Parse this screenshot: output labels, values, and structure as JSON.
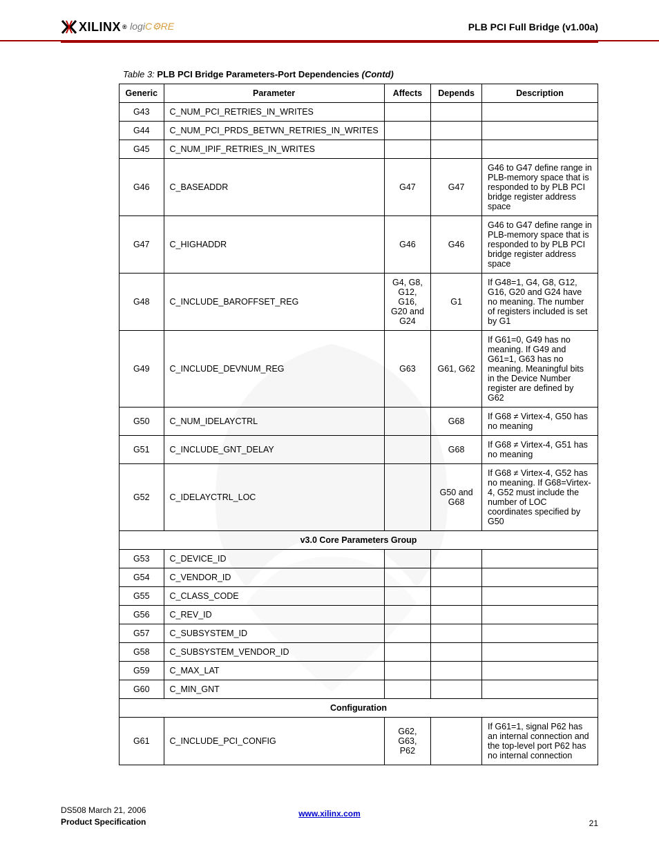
{
  "header": {
    "logo_text": "XILINX",
    "logo_sup": "®",
    "logo_sub_logi": "logi",
    "logo_sub_core": "C⚙RE",
    "title": "PLB PCI Full Bridge (v1.00a)"
  },
  "caption": {
    "prefix": "Table  3:",
    "title": "PLB PCI Bridge Parameters-Port Dependencies",
    "contd": "(Contd)"
  },
  "columns": [
    "Generic",
    "Parameter",
    "Affects",
    "Depends",
    "Description"
  ],
  "rows": [
    {
      "type": "row",
      "generic": "G43",
      "param": "C_NUM_PCI_RETRIES_IN_WRITES",
      "affects": "",
      "depends": "",
      "desc": ""
    },
    {
      "type": "row",
      "generic": "G44",
      "param": "C_NUM_PCI_PRDS_BETWN_RETRIES_IN_WRITES",
      "affects": "",
      "depends": "",
      "desc": ""
    },
    {
      "type": "row",
      "generic": "G45",
      "param": "C_NUM_IPIF_RETRIES_IN_WRITES",
      "affects": "",
      "depends": "",
      "desc": ""
    },
    {
      "type": "row",
      "generic": "G46",
      "param": "C_BASEADDR",
      "affects": "G47",
      "depends": "G47",
      "desc": "G46 to G47 define range in PLB-memory space that is responded to by PLB PCI bridge register address space"
    },
    {
      "type": "row",
      "generic": "G47",
      "param": "C_HIGHADDR",
      "affects": "G46",
      "depends": "G46",
      "desc": "G46 to G47 define range in PLB-memory space that is responded to by PLB PCI bridge register address space"
    },
    {
      "type": "row",
      "generic": "G48",
      "param": "C_INCLUDE_BAROFFSET_REG",
      "affects": "G4, G8, G12, G16, G20 and G24",
      "depends": "G1",
      "desc": "If G48=1, G4, G8, G12, G16, G20 and G24 have no meaning. The number of registers included is set by G1"
    },
    {
      "type": "row",
      "generic": "G49",
      "param": "C_INCLUDE_DEVNUM_REG",
      "affects": "G63",
      "depends": "G61, G62",
      "desc": "If G61=0, G49 has no meaning. If G49 and G61=1, G63 has no meaning. Meaningful bits in the Device Number register are defined by G62"
    },
    {
      "type": "row",
      "generic": "G50",
      "param": "C_NUM_IDELAYCTRL",
      "affects": "",
      "depends": "G68",
      "desc": "If G68 ≠ Virtex-4, G50 has no meaning"
    },
    {
      "type": "row",
      "generic": "G51",
      "param": "C_INCLUDE_GNT_DELAY",
      "affects": "",
      "depends": "G68",
      "desc": "If G68 ≠ Virtex-4, G51 has no meaning"
    },
    {
      "type": "row",
      "generic": "G52",
      "param": "C_IDELAYCTRL_LOC",
      "affects": "",
      "depends": "G50 and G68",
      "desc": "If G68 ≠ Virtex-4, G52 has no meaning. If G68=Virtex-4, G52 must include the number of LOC coordinates specified by G50"
    },
    {
      "type": "group",
      "label": "v3.0 Core Parameters Group"
    },
    {
      "type": "row",
      "generic": "G53",
      "param": "C_DEVICE_ID",
      "affects": "",
      "depends": "",
      "desc": ""
    },
    {
      "type": "row",
      "generic": "G54",
      "param": "C_VENDOR_ID",
      "affects": "",
      "depends": "",
      "desc": ""
    },
    {
      "type": "row",
      "generic": "G55",
      "param": "C_CLASS_CODE",
      "affects": "",
      "depends": "",
      "desc": ""
    },
    {
      "type": "row",
      "generic": "G56",
      "param": "C_REV_ID",
      "affects": "",
      "depends": "",
      "desc": ""
    },
    {
      "type": "row",
      "generic": "G57",
      "param": "C_SUBSYSTEM_ID",
      "affects": "",
      "depends": "",
      "desc": ""
    },
    {
      "type": "row",
      "generic": "G58",
      "param": "C_SUBSYSTEM_VENDOR_ID",
      "affects": "",
      "depends": "",
      "desc": ""
    },
    {
      "type": "row",
      "generic": "G59",
      "param": "C_MAX_LAT",
      "affects": "",
      "depends": "",
      "desc": ""
    },
    {
      "type": "row",
      "generic": "G60",
      "param": "C_MIN_GNT",
      "affects": "",
      "depends": "",
      "desc": ""
    },
    {
      "type": "group",
      "label": "Configuration"
    },
    {
      "type": "row",
      "generic": "G61",
      "param": "C_INCLUDE_PCI_CONFIG",
      "affects": "G62, G63, P62",
      "depends": "",
      "desc": "If G61=1, signal P62 has an internal connection and the top-level port P62 has no internal connection"
    }
  ],
  "footer": {
    "left_line1": "DS508 March 21, 2006",
    "left_line2": "Product Specification",
    "center_url_text": "www.xilinx.com",
    "center_url_href": "http://www.xilinx.com",
    "page": "21"
  }
}
